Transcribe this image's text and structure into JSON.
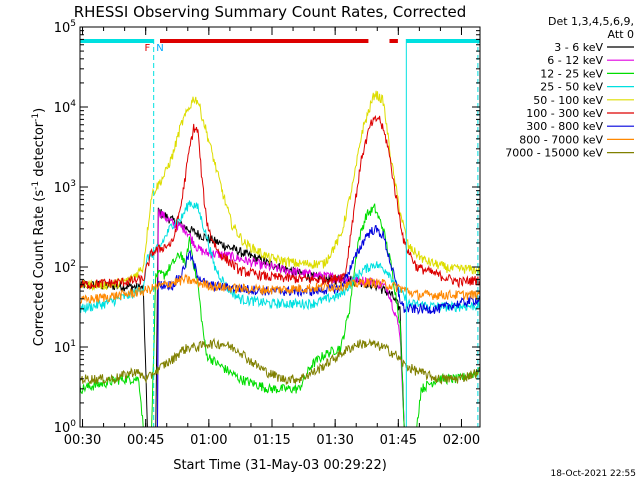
{
  "chart_data": {
    "type": "line",
    "title": "RHESSI Observing Summary Count Rates, Corrected",
    "xlabel": "Start Time (31-May-03 00:29:22)",
    "ylabel": "Corrected Count Rate (s",
    "ylabel_sup": "-1",
    "ylabel_tail": " detector",
    "ylabel_sup2": "-1",
    "ylabel_end": ")",
    "yscale": "log",
    "ylim": [
      1,
      100000
    ],
    "xlim_minutes": [
      0,
      95
    ],
    "x_ticks": [
      {
        "label": "00:30",
        "minute": 0.6
      },
      {
        "label": "00:45",
        "minute": 15.6
      },
      {
        "label": "01:00",
        "minute": 30.6
      },
      {
        "label": "01:15",
        "minute": 45.6
      },
      {
        "label": "01:30",
        "minute": 60.6
      },
      {
        "label": "01:45",
        "minute": 75.6
      },
      {
        "label": "02:00",
        "minute": 90.6
      }
    ],
    "y_ticks": [
      {
        "label": "10",
        "sup": "0",
        "value": 1
      },
      {
        "label": "10",
        "sup": "1",
        "value": 10
      },
      {
        "label": "10",
        "sup": "2",
        "value": 100
      },
      {
        "label": "10",
        "sup": "3",
        "value": 1000
      },
      {
        "label": "10",
        "sup": "4",
        "value": 10000
      },
      {
        "label": "10",
        "sup": "5",
        "value": 100000
      }
    ],
    "legend_header": [
      "Det 1,3,4,5,6,9,",
      "Att 0"
    ],
    "legend": [
      {
        "name": "3 - 6 keV",
        "color": "#000000"
      },
      {
        "name": "6 - 12 keV",
        "color": "#e000e0"
      },
      {
        "name": "12 - 25 keV",
        "color": "#00dd00"
      },
      {
        "name": "25 - 50 keV",
        "color": "#00e0e0"
      },
      {
        "name": "50 - 100 keV",
        "color": "#dddd00"
      },
      {
        "name": "100 - 300 keV",
        "color": "#dd0000"
      },
      {
        "name": "300 - 800 keV",
        "color": "#0000dd"
      },
      {
        "name": "800 - 7000 keV",
        "color": "#ff8800"
      },
      {
        "name": "7000 - 15000 keV",
        "color": "#808000"
      }
    ],
    "series": [
      {
        "name": "3 - 6 keV",
        "color": "#000000",
        "points": [
          [
            0,
            60
          ],
          [
            10,
            58
          ],
          [
            15,
            55
          ],
          [
            16,
            1
          ],
          [
            17,
            1
          ],
          [
            18,
            1
          ],
          [
            18.6,
            500
          ],
          [
            22,
            380
          ],
          [
            28,
            260
          ],
          [
            35,
            180
          ],
          [
            45,
            110
          ],
          [
            55,
            75
          ],
          [
            60,
            70
          ],
          [
            64,
            70
          ],
          [
            70,
            60
          ],
          [
            74,
            45
          ],
          [
            76,
            30
          ],
          [
            77,
            1
          ],
          [
            95,
            1
          ]
        ]
      },
      {
        "name": "6 - 12 keV",
        "color": "#e000e0",
        "points": [
          [
            16,
            1
          ],
          [
            17,
            1
          ],
          [
            18.4,
            1
          ],
          [
            18.6,
            500
          ],
          [
            22,
            350
          ],
          [
            25,
            300
          ],
          [
            28,
            170
          ],
          [
            30,
            150
          ],
          [
            35,
            140
          ],
          [
            45,
            100
          ],
          [
            55,
            80
          ],
          [
            60,
            75
          ],
          [
            65,
            70
          ],
          [
            70,
            65
          ],
          [
            73,
            55
          ],
          [
            75,
            25
          ],
          [
            76,
            15
          ],
          [
            77,
            1
          ],
          [
            80,
            1
          ]
        ]
      },
      {
        "name": "12 - 25 keV",
        "color": "#00dd00",
        "points": [
          [
            0,
            3
          ],
          [
            10,
            4
          ],
          [
            14,
            4
          ],
          [
            15,
            1
          ],
          [
            16,
            1
          ],
          [
            17,
            1
          ],
          [
            18,
            80
          ],
          [
            20,
            80
          ],
          [
            22,
            110
          ],
          [
            24,
            150
          ],
          [
            25,
            100
          ],
          [
            26,
            230
          ],
          [
            27,
            110
          ],
          [
            28,
            60
          ],
          [
            29,
            20
          ],
          [
            30,
            8
          ],
          [
            33,
            6
          ],
          [
            38,
            4
          ],
          [
            45,
            3
          ],
          [
            52,
            3
          ],
          [
            55,
            6
          ],
          [
            58,
            8
          ],
          [
            62,
            10
          ],
          [
            64,
            30
          ],
          [
            66,
            200
          ],
          [
            68,
            450
          ],
          [
            70,
            550
          ],
          [
            72,
            300
          ],
          [
            74,
            100
          ],
          [
            76,
            20
          ],
          [
            77,
            1
          ],
          [
            80,
            1
          ],
          [
            81,
            3
          ],
          [
            85,
            4
          ],
          [
            90,
            4
          ],
          [
            95,
            5
          ]
        ]
      },
      {
        "name": "25 - 50 keV",
        "color": "#00e0e0",
        "points": [
          [
            0,
            30
          ],
          [
            6,
            35
          ],
          [
            12,
            45
          ],
          [
            15,
            55
          ],
          [
            16,
            130
          ],
          [
            19,
            180
          ],
          [
            22,
            350
          ],
          [
            24,
            400
          ],
          [
            26,
            650
          ],
          [
            28,
            550
          ],
          [
            30,
            250
          ],
          [
            32,
            100
          ],
          [
            35,
            55
          ],
          [
            38,
            40
          ],
          [
            45,
            35
          ],
          [
            55,
            35
          ],
          [
            62,
            45
          ],
          [
            64,
            60
          ],
          [
            67,
            90
          ],
          [
            70,
            110
          ],
          [
            73,
            90
          ],
          [
            76,
            50
          ],
          [
            78,
            35
          ],
          [
            85,
            32
          ],
          [
            90,
            32
          ],
          [
            95,
            33
          ]
        ]
      },
      {
        "name": "50 - 100 keV",
        "color": "#dddd00",
        "points": [
          [
            0,
            60
          ],
          [
            8,
            60
          ],
          [
            12,
            70
          ],
          [
            15,
            100
          ],
          [
            17,
            800
          ],
          [
            20,
            1400
          ],
          [
            22,
            2500
          ],
          [
            24,
            6000
          ],
          [
            26,
            10000
          ],
          [
            27,
            13000
          ],
          [
            28,
            12000
          ],
          [
            30,
            5000
          ],
          [
            32,
            2000
          ],
          [
            34,
            800
          ],
          [
            36,
            350
          ],
          [
            39,
            200
          ],
          [
            45,
            130
          ],
          [
            52,
            110
          ],
          [
            58,
            110
          ],
          [
            62,
            250
          ],
          [
            65,
            1200
          ],
          [
            67,
            5000
          ],
          [
            70,
            15000
          ],
          [
            72,
            12000
          ],
          [
            74,
            2000
          ],
          [
            76,
            500
          ],
          [
            78,
            180
          ],
          [
            82,
            120
          ],
          [
            88,
            95
          ],
          [
            92,
            95
          ],
          [
            95,
            90
          ]
        ]
      },
      {
        "name": "100 - 300 keV",
        "color": "#dd0000",
        "points": [
          [
            0,
            60
          ],
          [
            10,
            65
          ],
          [
            15,
            70
          ],
          [
            17,
            150
          ],
          [
            19,
            170
          ],
          [
            22,
            200
          ],
          [
            24,
            600
          ],
          [
            26,
            3000
          ],
          [
            27,
            5500
          ],
          [
            28,
            5000
          ],
          [
            29,
            1200
          ],
          [
            30,
            400
          ],
          [
            31,
            250
          ],
          [
            33,
            150
          ],
          [
            38,
            90
          ],
          [
            45,
            75
          ],
          [
            55,
            70
          ],
          [
            60,
            70
          ],
          [
            63,
            80
          ],
          [
            65,
            500
          ],
          [
            67,
            2500
          ],
          [
            69,
            6000
          ],
          [
            71,
            7500
          ],
          [
            73,
            3500
          ],
          [
            75,
            800
          ],
          [
            77,
            200
          ],
          [
            80,
            100
          ],
          [
            85,
            80
          ],
          [
            90,
            65
          ],
          [
            95,
            70
          ]
        ]
      },
      {
        "name": "300 - 800 keV",
        "color": "#0000dd",
        "points": [
          [
            16,
            1
          ],
          [
            17,
            1
          ],
          [
            18.4,
            1
          ],
          [
            18.6,
            60
          ],
          [
            22,
            60
          ],
          [
            24,
            80
          ],
          [
            26,
            150
          ],
          [
            28,
            80
          ],
          [
            30,
            60
          ],
          [
            36,
            55
          ],
          [
            45,
            50
          ],
          [
            55,
            50
          ],
          [
            62,
            55
          ],
          [
            65,
            120
          ],
          [
            68,
            250
          ],
          [
            70,
            300
          ],
          [
            72,
            250
          ],
          [
            74,
            100
          ],
          [
            76,
            40
          ],
          [
            77,
            30
          ],
          [
            80,
            30
          ],
          [
            85,
            30
          ],
          [
            90,
            35
          ],
          [
            95,
            40
          ]
        ]
      },
      {
        "name": "800 - 7000 keV",
        "color": "#ff8800",
        "points": [
          [
            0,
            38
          ],
          [
            10,
            45
          ],
          [
            15,
            50
          ],
          [
            20,
            60
          ],
          [
            25,
            70
          ],
          [
            30,
            60
          ],
          [
            35,
            55
          ],
          [
            45,
            52
          ],
          [
            55,
            55
          ],
          [
            62,
            58
          ],
          [
            68,
            65
          ],
          [
            72,
            62
          ],
          [
            76,
            55
          ],
          [
            80,
            45
          ],
          [
            90,
            45
          ],
          [
            95,
            45
          ]
        ]
      },
      {
        "name": "7000 - 15000 keV",
        "color": "#808000",
        "points": [
          [
            0,
            4
          ],
          [
            8,
            4
          ],
          [
            13,
            5
          ],
          [
            16,
            4
          ],
          [
            18,
            5
          ],
          [
            20,
            6
          ],
          [
            22,
            7
          ],
          [
            24,
            9
          ],
          [
            26,
            10
          ],
          [
            28,
            10
          ],
          [
            30,
            11
          ],
          [
            34,
            11
          ],
          [
            38,
            9
          ],
          [
            40,
            7
          ],
          [
            44,
            5
          ],
          [
            48,
            4
          ],
          [
            52,
            4
          ],
          [
            56,
            5
          ],
          [
            60,
            7
          ],
          [
            63,
            9
          ],
          [
            66,
            11
          ],
          [
            69,
            11
          ],
          [
            72,
            10
          ],
          [
            75,
            8
          ],
          [
            77,
            6
          ],
          [
            80,
            5
          ],
          [
            85,
            4
          ],
          [
            90,
            4
          ],
          [
            95,
            5
          ]
        ]
      }
    ],
    "status_bars": [
      {
        "color": "#00e0e0",
        "start": -1,
        "end": 17.5
      },
      {
        "color": "#dd0000",
        "start": 19,
        "end": 68.5
      },
      {
        "color": "#dd0000",
        "start": 73.5,
        "end": 75.5
      },
      {
        "color": "#00e0e0",
        "start": 77.5,
        "end": 95
      }
    ],
    "status_labels": [
      {
        "text": "F",
        "color": "#dd0000",
        "minute": 16
      },
      {
        "text": "N",
        "color": "#00aaff",
        "minute": 19
      }
    ],
    "vlines": [
      {
        "color": "#00e0e0",
        "dash": true,
        "minute": 17.5
      },
      {
        "color": "#00e0e0",
        "dash": false,
        "minute": 77.5
      },
      {
        "color": "#00e0e0",
        "dash": true,
        "minute": 94.5
      }
    ],
    "timestamp": "18-Oct-2021 22:55"
  }
}
